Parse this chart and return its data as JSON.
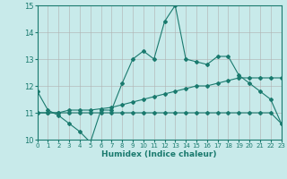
{
  "xlabel": "Humidex (Indice chaleur)",
  "ylabel": "",
  "background_color": "#c8eaea",
  "grid_color": "#b0b0b0",
  "line_color": "#1a7a6e",
  "xlim": [
    0,
    23
  ],
  "ylim": [
    10,
    15
  ],
  "yticks": [
    10,
    11,
    12,
    13,
    14,
    15
  ],
  "xticks": [
    0,
    1,
    2,
    3,
    4,
    5,
    6,
    7,
    8,
    9,
    10,
    11,
    12,
    13,
    14,
    15,
    16,
    17,
    18,
    19,
    20,
    21,
    22,
    23
  ],
  "series1_x": [
    0,
    1,
    2,
    3,
    4,
    5,
    6,
    7,
    8,
    9,
    10,
    11,
    12,
    13,
    14,
    15,
    16,
    17,
    18,
    19,
    20,
    21,
    22,
    23
  ],
  "series1_y": [
    11.8,
    11.1,
    10.9,
    10.6,
    10.3,
    9.9,
    11.1,
    11.1,
    12.1,
    13.0,
    13.3,
    13.0,
    14.4,
    15.0,
    13.0,
    12.9,
    12.8,
    13.1,
    13.1,
    12.4,
    12.1,
    11.8,
    11.5,
    10.6
  ],
  "series2_x": [
    0,
    1,
    2,
    3,
    4,
    5,
    6,
    7,
    8,
    9,
    10,
    11,
    12,
    13,
    14,
    15,
    16,
    17,
    18,
    19,
    20,
    21,
    22,
    23
  ],
  "series2_y": [
    11.0,
    11.0,
    11.0,
    11.1,
    11.1,
    11.1,
    11.15,
    11.2,
    11.3,
    11.4,
    11.5,
    11.6,
    11.7,
    11.8,
    11.9,
    12.0,
    12.0,
    12.1,
    12.2,
    12.3,
    12.3,
    12.3,
    12.3,
    12.3
  ],
  "series3_x": [
    0,
    1,
    2,
    3,
    4,
    5,
    6,
    7,
    8,
    9,
    10,
    11,
    12,
    13,
    14,
    15,
    16,
    17,
    18,
    19,
    20,
    21,
    22,
    23
  ],
  "series3_y": [
    11.0,
    11.0,
    11.0,
    11.0,
    11.0,
    11.0,
    11.0,
    11.0,
    11.0,
    11.0,
    11.0,
    11.0,
    11.0,
    11.0,
    11.0,
    11.0,
    11.0,
    11.0,
    11.0,
    11.0,
    11.0,
    11.0,
    11.0,
    10.6
  ]
}
